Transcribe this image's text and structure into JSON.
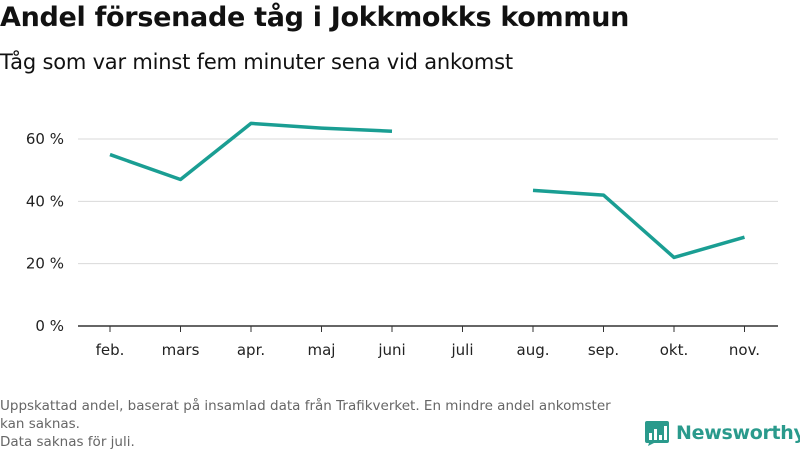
{
  "chart_title": "Andel försenade tåg i Jokkmokks kommun",
  "chart_subtitle": "Tåg som var minst fem minuter sena vid ankomst",
  "footnote_lines": [
    "Uppskattad andel, baserat på insamlad data från Trafikverket. En mindre andel ankomster kan saknas.",
    "Data saknas för juli."
  ],
  "brand": {
    "name": "Newsworthy",
    "color": "#2a9a8c"
  },
  "colors": {
    "line": "#1a9e93",
    "grid": "#d9d9d9",
    "axis": "#333333"
  },
  "chart_data": {
    "type": "line",
    "title": "Andel försenade tåg i Jokkmokks kommun",
    "subtitle": "Tåg som var minst fem minuter sena vid ankomst",
    "categories": [
      "feb.",
      "mars",
      "apr.",
      "maj",
      "juni",
      "juli",
      "aug.",
      "sep.",
      "okt.",
      "nov."
    ],
    "series": [
      {
        "values": [
          55,
          47,
          65,
          63.5,
          62.5,
          null,
          43.5,
          42,
          22,
          28.5
        ]
      }
    ],
    "yticks": [
      0,
      20,
      40,
      60
    ],
    "ytick_labels": [
      "0 %",
      "20 %",
      "40 %",
      "60 %"
    ],
    "ylim": [
      0,
      70
    ],
    "xlabel": "",
    "ylabel": "",
    "grid": true
  }
}
